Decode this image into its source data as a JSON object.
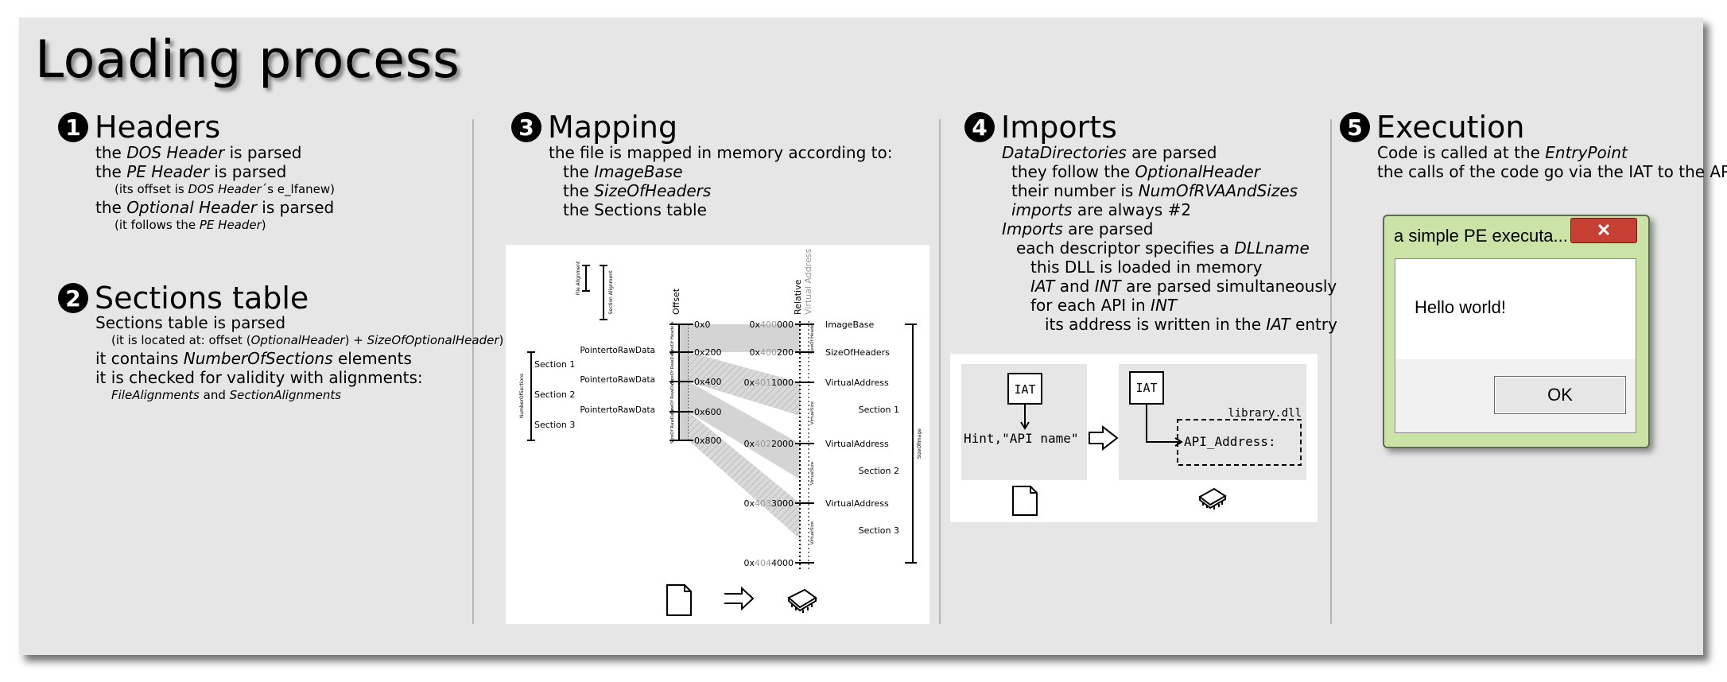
{
  "title": "Loading process",
  "sections": {
    "headers": {
      "num": "1",
      "title": "Headers"
    },
    "sections_table": {
      "num": "2",
      "title": "Sections table"
    },
    "mapping": {
      "num": "3",
      "title": "Mapping"
    },
    "imports": {
      "num": "4",
      "title": "Imports"
    },
    "execution": {
      "num": "5",
      "title": "Execution"
    }
  },
  "headers_text": {
    "l1a": "the ",
    "l1b": "DOS Header",
    "l1c": " is parsed",
    "l2a": "the ",
    "l2b": "PE Header",
    "l2c": " is parsed",
    "l3a": "(its offset is ",
    "l3b": "DOS Header",
    "l3c": "´s e_lfanew)",
    "l4a": "the ",
    "l4b": "Optional Header",
    "l4c": " is parsed",
    "l5a": "(it follows the ",
    "l5b": "PE Header",
    "l5c": ")"
  },
  "sections_text": {
    "l1": "Sections table is parsed",
    "l2a": "(it is located at: offset (",
    "l2b": "OptionalHeader",
    "l2c": ") + ",
    "l2d": "SizeOfOptionalHeader",
    "l2e": ")",
    "l3a": "it contains ",
    "l3b": "NumberOfSections",
    "l3c": " elements",
    "l4": "it is checked for validity with alignments:",
    "l5a": "FileAlignments",
    "l5b": " and ",
    "l5c": "SectionAlignments"
  },
  "mapping_text": {
    "l1": "the file is mapped in memory according to:",
    "l2a": "the ",
    "l2b": "ImageBase",
    "l3a": "the ",
    "l3b": "SizeOfHeaders",
    "l4": "the Sections table"
  },
  "imports_text": {
    "l1a": "DataDirectories",
    "l1b": " are parsed",
    "l2a": "they follow the ",
    "l2b": "OptionalHeader",
    "l3a": "their number is ",
    "l3b": "NumOfRVAAndSizes",
    "l4a": "imports",
    "l4b": " are always #2",
    "l5a": "Imports",
    "l5b": " are parsed",
    "l6a": "each descriptor specifies a ",
    "l6b": "DLLname",
    "l7": "this DLL is loaded in memory",
    "l8a": "IAT",
    "l8b": " and ",
    "l8c": "INT",
    "l8d": " are parsed simultaneously",
    "l9a": "for each API in ",
    "l9b": "INT",
    "l10a": "its address is written in the ",
    "l10b": "IAT",
    "l10c": " entry"
  },
  "execution_text": {
    "l1a": "Code is called at the ",
    "l1b": "EntryPoint",
    "l2": "the calls of the code go via the IAT to the APIs"
  },
  "mapping_diagram": {
    "file_alignment": "File Alignment",
    "section_alignment": "Section Alignment",
    "offset_label": "Offset",
    "relative_label": "Relative",
    "virtual_address_label": "Virtual Address",
    "number_of_sections": "NumberOfSections",
    "sizeofimage": "SizeOfImage",
    "left_sections": [
      "Section 1",
      "Section 2",
      "Section 3"
    ],
    "ptr_labels": [
      "PointertoRawData",
      "PointertoRawData",
      "PointertoRawData"
    ],
    "offsets": [
      "0x0",
      "0x200",
      "0x400",
      "0x600",
      "0x800"
    ],
    "raw_labels": [
      "SizeOf Headers",
      "SizeOf RawData",
      "SizeOf RawData",
      "SizeOf RawData"
    ],
    "va_prefix": "0x",
    "va_mid": [
      "400",
      "400",
      "401",
      "402",
      "403",
      "404"
    ],
    "va_suffix": [
      "000",
      "200",
      "1000",
      "2000",
      "3000",
      "4000"
    ],
    "right_labels": [
      "ImageBase",
      "SizeOfHeaders",
      "VirtualAddress",
      "VirtualAddress",
      "VirtualAddress"
    ],
    "right_sections": [
      "Section 1",
      "Section 2",
      "Section 3"
    ],
    "vsize_labels": [
      "SizeOf Header",
      "VirtualSize",
      "VirtualSize",
      "VirtualSize"
    ]
  },
  "imports_diagram": {
    "iat_left": "IAT",
    "hint": "Hint,\"API name\"",
    "iat_right": "IAT",
    "library": "library.dll",
    "api_address": "API_Address:"
  },
  "dialog": {
    "title": "a simple PE executa...",
    "close": "✕",
    "message": "Hello world!",
    "ok": "OK"
  }
}
